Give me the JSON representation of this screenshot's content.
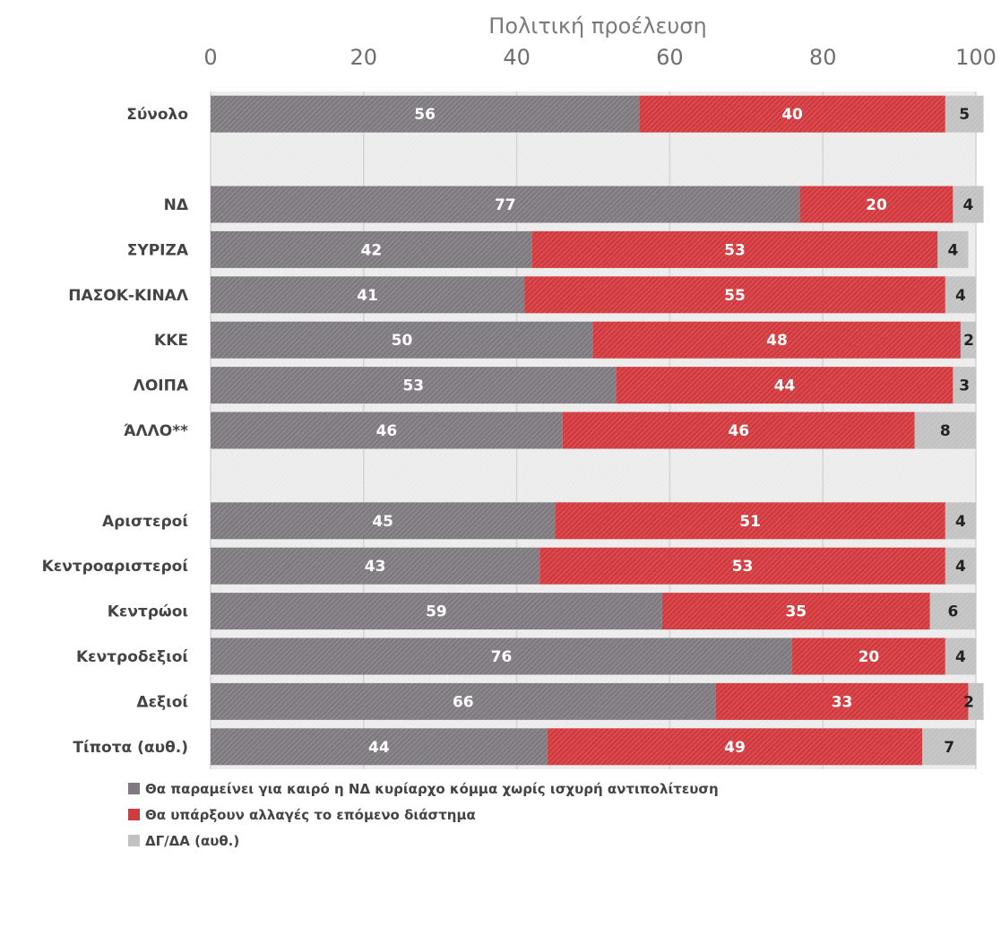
{
  "chart_data": {
    "type": "bar",
    "orientation": "horizontal",
    "stacked": true,
    "title": "Πολιτική προέλευση",
    "xlim": [
      0,
      100
    ],
    "ticks": [
      0,
      20,
      40,
      60,
      80,
      100
    ],
    "grid": true,
    "legend_position": "bottom",
    "categories": [
      "Σύνολο",
      "",
      "ΝΔ",
      "ΣΥΡΙΖΑ",
      "ΠΑΣΟΚ-ΚΙΝΑΛ",
      "ΚΚΕ",
      "ΛΟΙΠΑ",
      "ΆΛΛΟ**",
      "",
      "Αριστεροί",
      "Κεντροαριστεροί",
      "Κεντρώοι",
      "Κεντροδεξιοί",
      "Δεξιοί",
      "Τίποτα (αυθ.)"
    ],
    "series": [
      {
        "name": "Θα παραμείνει για καιρό η ΝΔ κυρίαρχο κόμμα χωρίς ισχυρή αντιπολίτευση",
        "color": "#7f7a80",
        "label_color": "#ffffff",
        "values": [
          56,
          null,
          77,
          42,
          41,
          50,
          53,
          46,
          null,
          45,
          43,
          59,
          76,
          66,
          44
        ],
        "labels": [
          "56",
          "",
          "77",
          "42",
          "41",
          "50",
          "53",
          "46",
          "",
          "45",
          "43",
          "59",
          "76",
          "66",
          "44"
        ]
      },
      {
        "name": "Θα υπάρξουν αλλαγές το επόμενο διάστημα",
        "color": "#d23a3e",
        "label_color": "#ffffff",
        "values": [
          40,
          null,
          20,
          53,
          55,
          48,
          44,
          46,
          null,
          51,
          53,
          35,
          20,
          33,
          49
        ],
        "labels": [
          "40",
          "",
          "20",
          "53",
          "55",
          "48",
          "44",
          "46",
          "",
          "51",
          "53",
          "35",
          "20",
          "33",
          "49"
        ]
      },
      {
        "name": "ΔΓ/ΔΑ (αυθ.)",
        "color": "#c2c2c2",
        "label_color": "#222222",
        "values": [
          5,
          null,
          4,
          4,
          4,
          2,
          3,
          8,
          null,
          4,
          4,
          6,
          4,
          2,
          7
        ],
        "labels": [
          "5",
          "",
          "4",
          "4",
          "4",
          "2",
          "3",
          "8",
          "",
          "4",
          "4",
          "6",
          "4",
          "2",
          "7"
        ]
      }
    ],
    "colors": {
      "plot_background": "#ececec",
      "grid": "#d4d4d4"
    }
  }
}
